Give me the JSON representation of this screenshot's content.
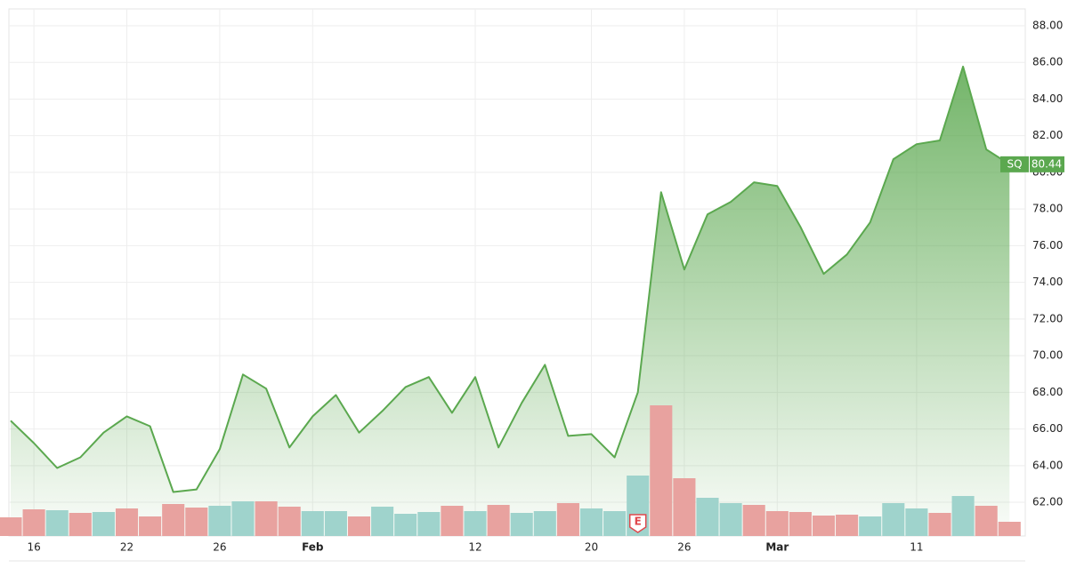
{
  "chart_data": {
    "type": "area",
    "categories": [
      null,
      "16",
      null,
      null,
      null,
      "22",
      null,
      null,
      null,
      "26",
      null,
      null,
      null,
      "Feb",
      null,
      null,
      null,
      null,
      null,
      null,
      "12",
      null,
      null,
      null,
      null,
      "20",
      null,
      null,
      null,
      "26",
      null,
      null,
      null,
      "Mar",
      null,
      null,
      null,
      null,
      null,
      "11",
      null,
      null,
      null,
      null
    ],
    "series": [
      {
        "name": "SQ",
        "color": "#5ba84f",
        "values": [
          66.45,
          65.23,
          63.87,
          64.45,
          65.8,
          66.69,
          66.15,
          62.56,
          62.7,
          64.9,
          68.97,
          68.2,
          64.99,
          66.69,
          67.85,
          65.8,
          66.98,
          68.29,
          68.83,
          66.88,
          68.83,
          64.99,
          67.42,
          69.5,
          65.62,
          65.72,
          64.45,
          68.0,
          78.92,
          74.7,
          77.71,
          78.39,
          79.46,
          79.26,
          77.03,
          74.46,
          75.52,
          77.27,
          80.72,
          81.54,
          81.74,
          85.77,
          81.25,
          80.44
        ]
      }
    ],
    "volume": {
      "values": [
        21,
        30,
        29,
        26,
        27,
        31,
        22,
        36,
        32,
        34,
        39,
        39,
        33,
        28,
        28,
        22,
        33,
        25,
        27,
        34,
        28,
        35,
        26,
        28,
        37,
        31,
        28,
        68,
        147,
        65,
        43,
        37,
        35,
        28,
        27,
        23,
        24,
        22,
        37,
        31,
        26,
        45,
        34,
        16
      ],
      "colors": [
        "#e8a29f",
        "#e8a29f",
        "#9fd3cc",
        "#e8a29f",
        "#9fd3cc",
        "#e8a29f",
        "#e8a29f",
        "#e8a29f",
        "#e8a29f",
        "#9fd3cc",
        "#9fd3cc",
        "#e8a29f",
        "#e8a29f",
        "#9fd3cc",
        "#9fd3cc",
        "#e8a29f",
        "#9fd3cc",
        "#9fd3cc",
        "#9fd3cc",
        "#e8a29f",
        "#9fd3cc",
        "#e8a29f",
        "#9fd3cc",
        "#9fd3cc",
        "#e8a29f",
        "#9fd3cc",
        "#9fd3cc",
        "#9fd3cc",
        "#e8a29f",
        "#e8a29f",
        "#9fd3cc",
        "#9fd3cc",
        "#e8a29f",
        "#e8a29f",
        "#e8a29f",
        "#e8a29f",
        "#e8a29f",
        "#9fd3cc",
        "#9fd3cc",
        "#9fd3cc",
        "#e8a29f",
        "#9fd3cc",
        "#e8a29f",
        "#e8a29f"
      ]
    },
    "event": {
      "label": "E",
      "index": 27
    },
    "ylim": [
      60.16,
      88.92
    ],
    "yticks": [
      {
        "value": 62,
        "label": "62.00"
      },
      {
        "value": 64,
        "label": "64.00"
      },
      {
        "value": 66,
        "label": "66.00"
      },
      {
        "value": 68,
        "label": "68.00"
      },
      {
        "value": 70,
        "label": "70.00"
      },
      {
        "value": 72,
        "label": "72.00"
      },
      {
        "value": 74,
        "label": "74.00"
      },
      {
        "value": 76,
        "label": "76.00"
      },
      {
        "value": 78,
        "label": "78.00"
      },
      {
        "value": 80,
        "label": "80.00"
      },
      {
        "value": 82,
        "label": "82.00"
      },
      {
        "value": 84,
        "label": "84.00"
      },
      {
        "value": 86,
        "label": "86.00"
      },
      {
        "value": 88,
        "label": "88.00"
      }
    ],
    "grid": true
  }
}
